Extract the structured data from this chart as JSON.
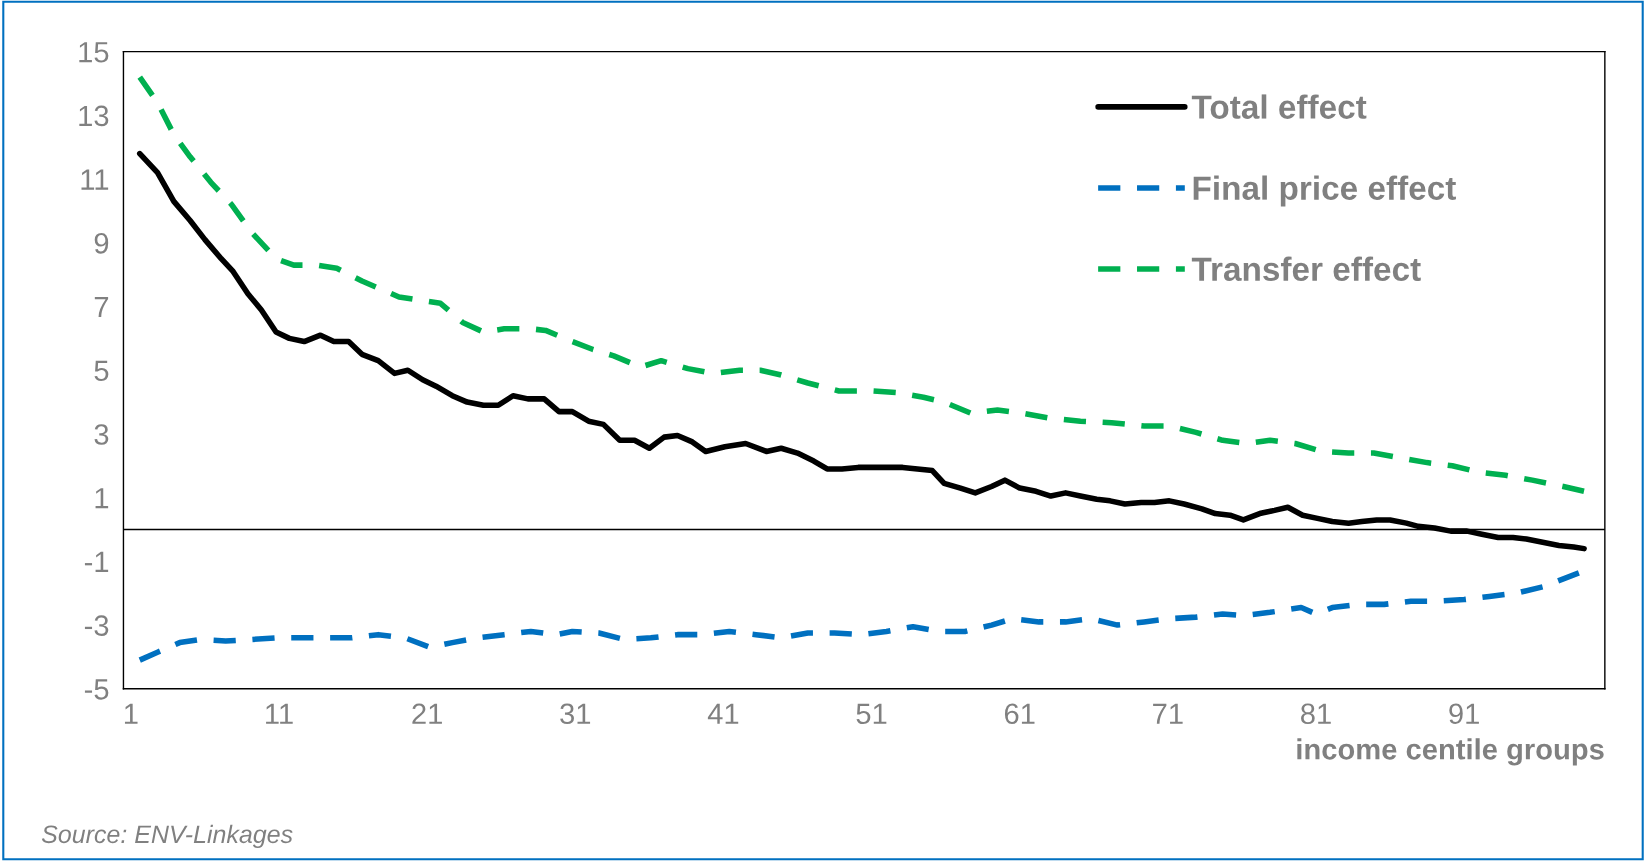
{
  "chart_data": {
    "type": "line",
    "xlabel": "income centile groups",
    "annotations": [
      "Source: ENV-Linkages"
    ],
    "xlim": [
      0.5,
      100.5
    ],
    "xticks": [
      1,
      11,
      21,
      31,
      41,
      51,
      61,
      71,
      81,
      91
    ],
    "ylim": [
      -5,
      15
    ],
    "yticks": [
      -5,
      -3,
      -1,
      1,
      3,
      5,
      7,
      9,
      11,
      13,
      15
    ],
    "grid": false,
    "legend": "top right",
    "ref_lines": [
      {
        "axis": "y",
        "value": 0,
        "color": "#000000"
      }
    ],
    "series": [
      {
        "name": "Total effect",
        "color": "#000000",
        "line_style": "solid",
        "x": [
          1.6,
          2.8,
          3.9,
          5.0,
          6.0,
          7.1,
          7.9,
          8.9,
          9.8,
          10.8,
          11.7,
          12.7,
          13.8,
          14.7,
          15.7,
          16.6,
          17.7,
          18.8,
          19.7,
          20.7,
          21.6,
          22.7,
          23.7,
          24.8,
          25.8,
          26.8,
          27.8,
          28.9,
          29.9,
          30.8,
          31.9,
          32.9,
          34.0,
          35.0,
          36.0,
          37.0,
          37.9,
          38.9,
          39.8,
          41.1,
          42.5,
          43.9,
          44.9,
          46.0,
          47.1,
          48.0,
          49.0,
          50.1,
          52.0,
          53.1,
          54.1,
          55.1,
          55.9,
          57.0,
          58.0,
          59.1,
          60.0,
          61.0,
          62.1,
          63.1,
          64.1,
          65.1,
          66.2,
          67.1,
          68.1,
          69.2,
          70.1,
          71.1,
          72.1,
          73.3,
          74.2,
          75.2,
          76.1,
          77.2,
          78.2,
          79.1,
          80.1,
          81.1,
          82.1,
          83.2,
          84.1,
          85.1,
          86.0,
          87.1,
          87.9,
          89.0,
          90.1,
          91.2,
          92.2,
          93.3,
          94.3,
          95.2,
          96.3,
          97.4,
          98.4,
          99.1
        ],
        "values": [
          11.8,
          11.2,
          10.3,
          9.7,
          9.1,
          8.5,
          8.1,
          7.4,
          6.9,
          6.2,
          6.0,
          5.9,
          6.1,
          5.9,
          5.9,
          5.5,
          5.3,
          4.9,
          5.0,
          4.7,
          4.5,
          4.2,
          4.0,
          3.9,
          3.9,
          4.2,
          4.1,
          4.1,
          3.7,
          3.7,
          3.4,
          3.3,
          2.8,
          2.8,
          2.55,
          2.9,
          2.95,
          2.75,
          2.45,
          2.6,
          2.7,
          2.45,
          2.55,
          2.4,
          2.15,
          1.9,
          1.9,
          1.95,
          1.95,
          1.95,
          1.9,
          1.85,
          1.45,
          1.3,
          1.15,
          1.35,
          1.55,
          1.3,
          1.2,
          1.05,
          1.15,
          1.05,
          0.95,
          0.9,
          0.8,
          0.85,
          0.85,
          0.9,
          0.8,
          0.65,
          0.5,
          0.45,
          0.3,
          0.5,
          0.6,
          0.7,
          0.45,
          0.35,
          0.25,
          0.2,
          0.25,
          0.3,
          0.3,
          0.2,
          0.1,
          0.05,
          -0.05,
          -0.05,
          -0.15,
          -0.25,
          -0.25,
          -0.3,
          -0.4,
          -0.5,
          -0.55,
          -0.6
        ]
      },
      {
        "name": "Final price effect",
        "color": "#0070c0",
        "line_style": "dashed",
        "x": [
          1.6,
          2.8,
          4.3,
          5.7,
          7.4,
          9.2,
          10.8,
          12.4,
          14.2,
          15.9,
          17.7,
          19.5,
          21.2,
          22.7,
          24.4,
          26.2,
          28.0,
          29.7,
          30.8,
          32.6,
          34.3,
          36.1,
          37.9,
          39.6,
          41.4,
          43.2,
          44.9,
          46.7,
          48.5,
          50.3,
          52.0,
          53.8,
          55.6,
          57.3,
          59.1,
          60.5,
          62.3,
          64.1,
          65.8,
          67.6,
          69.4,
          71.1,
          72.9,
          74.7,
          76.1,
          77.9,
          80.0,
          81.0,
          82.1,
          83.9,
          85.6,
          87.4,
          89.2,
          91.0,
          92.7,
          94.5,
          96.3,
          97.7,
          99.1
        ],
        "values": [
          -4.1,
          -3.85,
          -3.55,
          -3.45,
          -3.5,
          -3.45,
          -3.4,
          -3.4,
          -3.4,
          -3.4,
          -3.3,
          -3.4,
          -3.7,
          -3.55,
          -3.4,
          -3.3,
          -3.2,
          -3.3,
          -3.2,
          -3.25,
          -3.45,
          -3.4,
          -3.3,
          -3.3,
          -3.2,
          -3.3,
          -3.4,
          -3.25,
          -3.25,
          -3.3,
          -3.2,
          -3.05,
          -3.2,
          -3.2,
          -3.0,
          -2.8,
          -2.9,
          -2.9,
          -2.8,
          -3.0,
          -2.9,
          -2.8,
          -2.75,
          -2.65,
          -2.7,
          -2.6,
          -2.45,
          -2.65,
          -2.45,
          -2.35,
          -2.35,
          -2.25,
          -2.25,
          -2.2,
          -2.1,
          -2.0,
          -1.8,
          -1.55,
          -1.3
        ]
      },
      {
        "name": "Transfer effect",
        "color": "#00b050",
        "line_style": "dashed",
        "x": [
          1.6,
          2.8,
          3.9,
          5.0,
          6.4,
          7.8,
          9.2,
          10.8,
          12.0,
          13.5,
          14.9,
          16.6,
          18.1,
          19.1,
          20.5,
          21.9,
          23.4,
          24.8,
          26.2,
          28.0,
          29.0,
          30.8,
          32.2,
          33.6,
          35.4,
          36.8,
          38.6,
          40.3,
          42.1,
          43.5,
          44.9,
          46.7,
          48.8,
          51.0,
          52.7,
          54.5,
          55.9,
          57.7,
          59.5,
          61.2,
          63.0,
          65.1,
          67.2,
          69.4,
          71.1,
          72.9,
          74.7,
          76.4,
          77.9,
          79.6,
          81.4,
          83.2,
          84.9,
          86.7,
          88.5,
          90.2,
          92.0,
          93.8,
          95.6,
          97.7,
          99.1
        ],
        "values": [
          14.2,
          13.4,
          12.4,
          11.7,
          10.9,
          10.2,
          9.3,
          8.5,
          8.3,
          8.3,
          8.2,
          7.8,
          7.5,
          7.3,
          7.2,
          7.1,
          6.5,
          6.2,
          6.3,
          6.3,
          6.25,
          5.9,
          5.65,
          5.45,
          5.1,
          5.3,
          5.05,
          4.9,
          5.0,
          5.0,
          4.85,
          4.6,
          4.35,
          4.35,
          4.3,
          4.15,
          4.0,
          3.65,
          3.75,
          3.65,
          3.5,
          3.4,
          3.35,
          3.25,
          3.25,
          3.05,
          2.8,
          2.7,
          2.8,
          2.7,
          2.45,
          2.4,
          2.4,
          2.25,
          2.1,
          2.0,
          1.8,
          1.7,
          1.55,
          1.35,
          1.2
        ]
      }
    ]
  }
}
